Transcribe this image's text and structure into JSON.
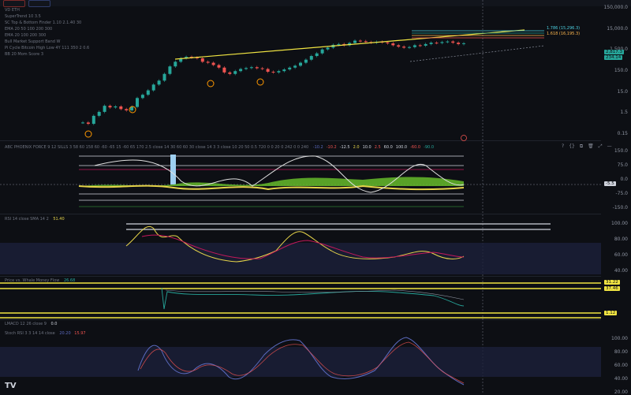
{
  "header": {
    "tab_red": "15s",
    "tab_blue": "5m"
  },
  "legends": {
    "main": [
      "VD  ETH",
      "SuperTrend 10 3.5",
      "SC Top & Bottom Finder 1.10 2.1.40 30",
      "EMA 20 50 100 200 300",
      "EMA 20 100 200 300",
      "Bull Market Support Band  W",
      "Pi Cycle Bitcoin High Low 4Y 111 350 2 0.6",
      "BB 20 Mom Score 3"
    ],
    "osc1": "ABC PHOENIX FORCE 9 12 SILLS 3 58 60 158 60 -60 -65 15 -60 65 170 2.5 close 14 30 60 60 30 close 14 3 3 close 10 20 50 0.5 720 0 0 20 0 242 0 0 240",
    "osc1_values": [
      "-10.2",
      "-10.2",
      "-12.5",
      "2.0",
      "10.0"
    ],
    "osc1_right": [
      "2.5",
      "60.0",
      "100.0",
      "-60.0",
      "-90.0"
    ],
    "rsi": "RSI 14 close SMA 14 2",
    "rsi_value": "51.40",
    "pv": "Price vs. Whale Money Flow",
    "pv_value": "26.68",
    "lmacd": "LMACD 12 26 close 9",
    "lmacd_value": "0.0",
    "stoch": "Stoch RSI 3 3 14 14 close",
    "stoch_values": [
      "20.20",
      "15.97"
    ]
  },
  "axes": {
    "main": [
      "150,000.0",
      "15,000.0",
      "1,500.0",
      "150.0",
      "15.0",
      "1.5",
      "0.15"
    ],
    "main_fib": [
      "1,500.0",
      "125.0",
      "12.5",
      "1.25"
    ],
    "osc1": [
      "150.0",
      "75.0",
      "0.0",
      "-75.0",
      "-150.0"
    ],
    "rsi": [
      "100.00",
      "80.00",
      "60.00",
      "40.00"
    ],
    "stoch": [
      "100.00",
      "80.00",
      "60.00",
      "40.00",
      "20.00"
    ]
  },
  "price_tags": {
    "last": "2,817.3",
    "last2": "234.14",
    "osc1_val": "-5.5",
    "pv_a": "31.22",
    "pv_b": "37.46",
    "pv_c": "1.12"
  },
  "fib_labels": [
    "1.786 (15,296.3)",
    "1.618 (16,195.3)"
  ],
  "toolbar": [
    "?",
    "{}",
    "⧉",
    "🗑",
    "⤢",
    "—"
  ],
  "colors": {
    "bull": "#26a69a",
    "bear": "#ef5350",
    "yellow": "#f0e442",
    "rsi": "#e6d44a",
    "sig": "#c2185b"
  },
  "logo": "TV",
  "chart_data": {
    "type": "candlestick",
    "note_scale": "log",
    "candles_close": [
      0.8,
      0.7,
      1.6,
      2.4,
      4.5,
      3.8,
      4.2,
      3.2,
      2.8,
      4.0,
      10,
      14,
      22,
      40,
      60,
      120,
      260,
      420,
      600,
      700,
      650,
      600,
      420,
      380,
      300,
      230,
      140,
      120,
      160,
      200,
      220,
      240,
      215,
      200,
      150,
      140,
      160,
      190,
      230,
      280,
      380,
      520,
      760,
      1000,
      1500,
      1800,
      2400,
      2600,
      2300,
      2900,
      3700,
      3500,
      3200,
      3000,
      3300,
      3100,
      2800,
      2300,
      2000,
      1800,
      1900,
      2300,
      2200,
      2600,
      3000,
      2900,
      3200,
      3400,
      3000,
      2600,
      2817
    ]
  }
}
